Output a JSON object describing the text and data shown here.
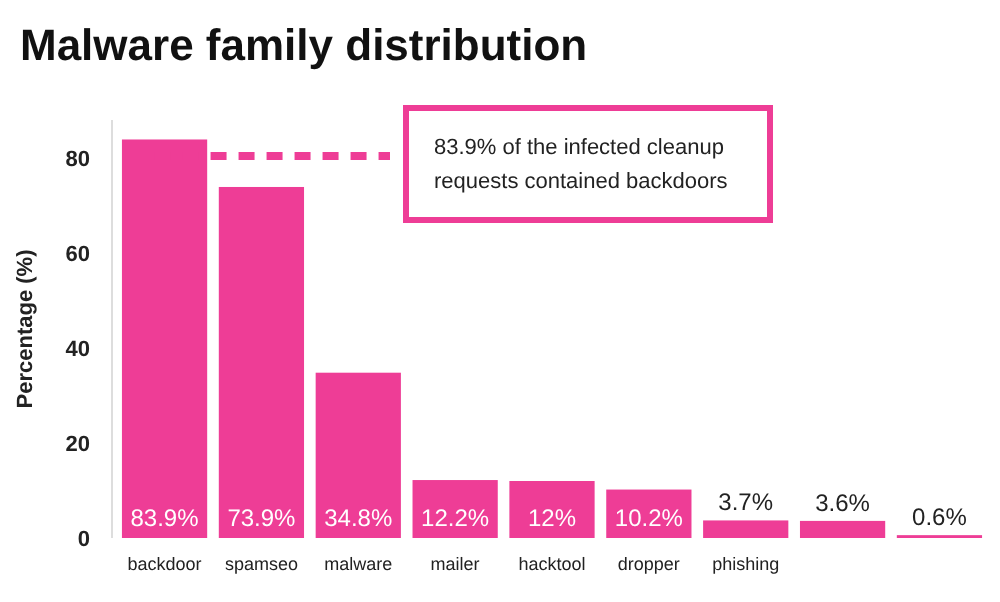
{
  "chart_data": {
    "type": "bar",
    "title": "Malware family distribution",
    "ylabel": "Percentage (%)",
    "categories": [
      "backdoor",
      "spamseo",
      "malware",
      "mailer",
      "hacktool",
      "dropper",
      "phishing",
      null,
      null
    ],
    "values": [
      83.9,
      73.9,
      34.8,
      12.2,
      12,
      10.2,
      3.7,
      3.6,
      0.6
    ],
    "value_labels": [
      "83.9%",
      "73.9%",
      "34.8%",
      "12.2%",
      "12%",
      "10.2%",
      "3.7%",
      "3.6%",
      "0.6%"
    ],
    "color": "#ee3d96",
    "ylim": [
      0,
      88
    ],
    "yticks": [
      0,
      20,
      40,
      60,
      80
    ],
    "annotations": [
      "83.9% of the infected cleanup requests contained backdoors"
    ]
  }
}
